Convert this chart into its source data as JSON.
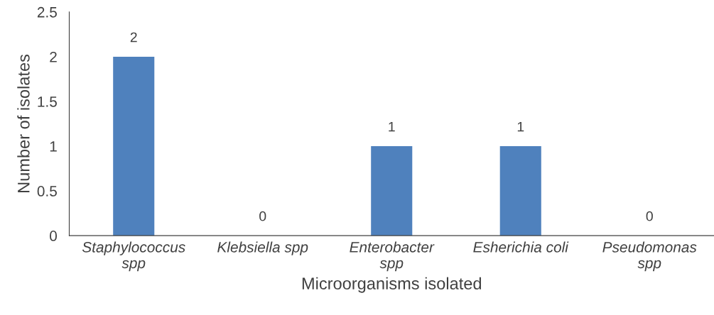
{
  "chart_data": {
    "type": "bar",
    "xlabel": "Microorganisms isolated",
    "ylabel": "Number of isolates",
    "categories": [
      "Staphylococcus\nspp",
      "Klebsiella spp",
      "Enterobacter\nspp",
      "Esherichia coli",
      "Pseudomonas\nspp"
    ],
    "values": [
      2,
      0,
      1,
      1,
      0
    ],
    "color": "#4f81bd",
    "ylim": [
      0,
      2.5
    ],
    "yticks": [
      0,
      0.5,
      1,
      1.5,
      2,
      2.5
    ],
    "grid": false,
    "data_labels": true
  }
}
